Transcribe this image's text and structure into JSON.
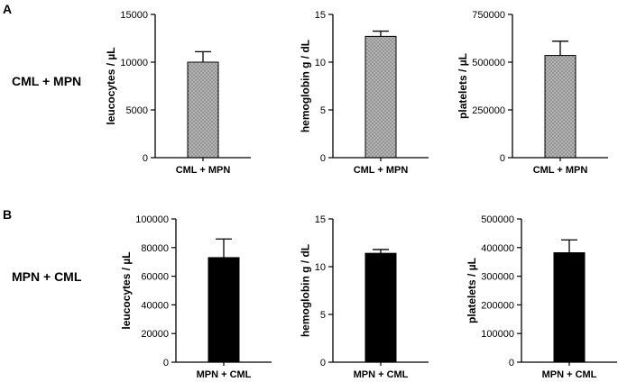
{
  "panels": [
    {
      "letter": "A",
      "row_label": "CML + MPN"
    },
    {
      "letter": "B",
      "row_label": "MPN + CML"
    }
  ],
  "colors": {
    "A_fill": "#b3b3b3",
    "B_fill": "#000000",
    "axis": "#000000"
  },
  "chart_data": [
    {
      "type": "bar",
      "panel": "A",
      "categories": [
        "CML + MPN"
      ],
      "values": [
        10000
      ],
      "error": [
        1100
      ],
      "ylabel": "leucocytes / µL",
      "ylim": [
        0,
        15000
      ],
      "yticks": [
        0,
        5000,
        10000,
        15000
      ],
      "ytick_labels": [
        "0",
        "5000",
        "10000",
        "15000"
      ],
      "pattern": "dotted"
    },
    {
      "type": "bar",
      "panel": "A",
      "categories": [
        "CML + MPN"
      ],
      "values": [
        12.7
      ],
      "error": [
        0.55
      ],
      "ylabel": "hemoglobin g / dL",
      "ylim": [
        0,
        15
      ],
      "yticks": [
        0,
        5,
        10,
        15
      ],
      "ytick_labels": [
        "0",
        "5",
        "10",
        "15"
      ],
      "pattern": "dotted"
    },
    {
      "type": "bar",
      "panel": "A",
      "categories": [
        "CML + MPN"
      ],
      "values": [
        535000
      ],
      "error": [
        75000
      ],
      "ylabel": "platelets / µL",
      "ylim": [
        0,
        750000
      ],
      "yticks": [
        0,
        250000,
        500000,
        750000
      ],
      "ytick_labels": [
        "0",
        "250000",
        "500000",
        "750000"
      ],
      "pattern": "dotted"
    },
    {
      "type": "bar",
      "panel": "B",
      "categories": [
        "MPN + CML"
      ],
      "values": [
        73000
      ],
      "error": [
        13000
      ],
      "ylabel": "leucocytes / µL",
      "ylim": [
        0,
        100000
      ],
      "yticks": [
        0,
        20000,
        40000,
        60000,
        80000,
        100000
      ],
      "ytick_labels": [
        "0",
        "20000",
        "40000",
        "60000",
        "80000",
        "100000"
      ],
      "pattern": "solid"
    },
    {
      "type": "bar",
      "panel": "B",
      "categories": [
        "MPN + CML"
      ],
      "values": [
        11.4
      ],
      "error": [
        0.4
      ],
      "ylabel": "hemoglobin g / dL",
      "ylim": [
        0,
        15
      ],
      "yticks": [
        0,
        5,
        10,
        15
      ],
      "ytick_labels": [
        "0",
        "5",
        "10",
        "15"
      ],
      "pattern": "solid"
    },
    {
      "type": "bar",
      "panel": "B",
      "categories": [
        "MPN + CML"
      ],
      "values": [
        382000
      ],
      "error": [
        45000
      ],
      "ylabel": "platelets / µL",
      "ylim": [
        0,
        500000
      ],
      "yticks": [
        0,
        100000,
        200000,
        300000,
        400000,
        500000
      ],
      "ytick_labels": [
        "0",
        "100000",
        "200000",
        "300000",
        "400000",
        "500000"
      ],
      "pattern": "solid"
    }
  ]
}
